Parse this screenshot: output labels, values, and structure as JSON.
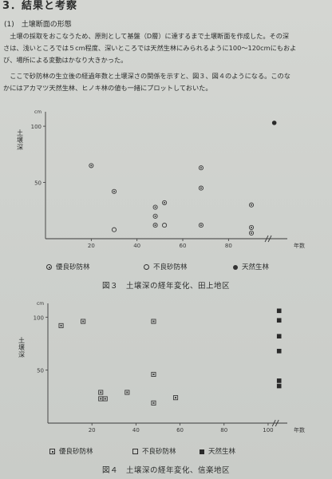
{
  "section": {
    "title": "3．結果と考察"
  },
  "subsection": {
    "title": "(1)　土壌断面の形態"
  },
  "paragraphs": [
    "　土壌の採取をおこなうため、原則として基盤（D層）に達するまで土壌断面を作成した。その深",
    "さは、浅いところでは５cm程度、深いところでは天然生林にみられるように100～120cmにもおよ",
    "び、場所による変動はかなり大きかった。",
    "　ここで砂防林の生立後の経過年数と土壌深さの関係を示すと、図３、図４のようになる。このな",
    "かにはアカマツ天然生林、ヒノキ林の値も一緒にプロットしておいた。"
  ],
  "figure3": {
    "caption": "図３　土壌深の経年変化、田上地区",
    "ylabel": "土壌深",
    "legend": [
      "優良砂防林",
      "不良砂防林",
      "天然生林"
    ],
    "chart_data": {
      "type": "scatter",
      "xlabel": "年数",
      "ylabel": "土壌深",
      "y_unit": "cm",
      "xlim": [
        0,
        105
      ],
      "ylim": [
        0,
        110
      ],
      "x_ticks": [
        "20",
        "40",
        "60",
        "80"
      ],
      "y_ticks": [
        "50",
        "100"
      ],
      "series": [
        {
          "name": "優良砂防林",
          "marker": "circle-dot",
          "points": [
            [
              20,
              65
            ],
            [
              30,
              42
            ],
            [
              48,
              28
            ],
            [
              48,
              20
            ],
            [
              48,
              12
            ],
            [
              52,
              32
            ],
            [
              68,
              63
            ],
            [
              68,
              45
            ],
            [
              68,
              12
            ],
            [
              90,
              30
            ],
            [
              90,
              10
            ],
            [
              90,
              5
            ]
          ]
        },
        {
          "name": "不良砂防林",
          "marker": "circle-open",
          "points": [
            [
              30,
              8
            ],
            [
              52,
              12
            ]
          ]
        },
        {
          "name": "天然生林",
          "marker": "circle-filled",
          "points": [
            [
              100,
              103
            ]
          ]
        }
      ]
    }
  },
  "figure4": {
    "caption": "図４　土壌深の経年変化、信楽地区",
    "ylabel": "土壌深",
    "legend": [
      "優良砂防林",
      "不良砂防林",
      "天然生林"
    ],
    "chart_data": {
      "type": "scatter",
      "xlabel": "年数",
      "ylabel": "土壌深",
      "y_unit": "cm",
      "xlim": [
        0,
        108
      ],
      "ylim": [
        0,
        110
      ],
      "x_ticks": [
        "20",
        "40",
        "60",
        "80",
        "100"
      ],
      "y_ticks": [
        "50",
        "100"
      ],
      "series": [
        {
          "name": "優良砂防林",
          "marker": "square-dot",
          "points": [
            [
              6,
              92
            ],
            [
              16,
              96
            ],
            [
              48,
              96
            ],
            [
              48,
              46
            ],
            [
              24,
              29
            ],
            [
              24,
              23
            ],
            [
              26,
              23
            ],
            [
              36,
              29
            ],
            [
              48,
              19
            ],
            [
              58,
              24
            ]
          ]
        },
        {
          "name": "不良砂防林",
          "marker": "square-open",
          "points": []
        },
        {
          "name": "天然生林",
          "marker": "square-filled",
          "points": [
            [
              105,
              106
            ],
            [
              105,
              97
            ],
            [
              105,
              82
            ],
            [
              105,
              68
            ],
            [
              105,
              40
            ],
            [
              105,
              35
            ]
          ]
        }
      ]
    }
  }
}
